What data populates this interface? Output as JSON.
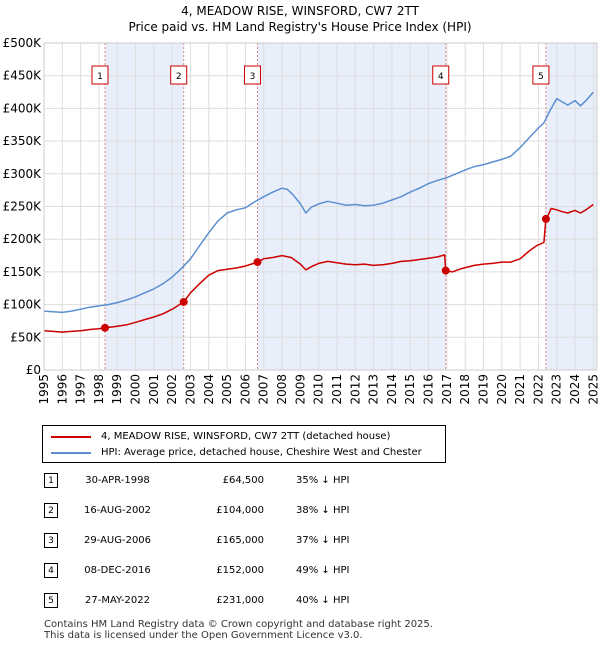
{
  "title": "4, MEADOW RISE, WINSFORD, CW7 2TT",
  "subtitle": "Price paid vs. HM Land Registry's House Price Index (HPI)",
  "colors": {
    "property": "#cc0000",
    "hpi": "#5b8fd0",
    "shade": "#e8eefa",
    "grid": "#dddddd",
    "vline": "#dd8888"
  },
  "chart_data": {
    "type": "line",
    "title": "4, MEADOW RISE, WINSFORD, CW7 2TT",
    "subtitle": "Price paid vs. HM Land Registry's House Price Index (HPI)",
    "xlim": [
      1995,
      2025.2
    ],
    "ylim": [
      0,
      500000
    ],
    "x_ticks": [
      1995,
      1996,
      1997,
      1998,
      1999,
      2000,
      2001,
      2002,
      2003,
      2004,
      2005,
      2006,
      2007,
      2008,
      2009,
      2010,
      2011,
      2012,
      2013,
      2014,
      2015,
      2016,
      2017,
      2018,
      2019,
      2020,
      2021,
      2022,
      2023,
      2024,
      2025
    ],
    "y_ticks": [
      {
        "value": 0,
        "label": "£0"
      },
      {
        "value": 50000,
        "label": "£50K"
      },
      {
        "value": 100000,
        "label": "£100K"
      },
      {
        "value": 150000,
        "label": "£150K"
      },
      {
        "value": 200000,
        "label": "£200K"
      },
      {
        "value": 250000,
        "label": "£250K"
      },
      {
        "value": 300000,
        "label": "£300K"
      },
      {
        "value": 350000,
        "label": "£350K"
      },
      {
        "value": 400000,
        "label": "£400K"
      },
      {
        "value": 450000,
        "label": "£450K"
      },
      {
        "value": 500000,
        "label": "£500K"
      }
    ],
    "series": [
      {
        "name": "4, MEADOW RISE, WINSFORD, CW7 2TT (detached house)",
        "color": "#cc0000",
        "x": [
          1995.0,
          1995.5,
          1996.0,
          1996.5,
          1997.0,
          1997.5,
          1998.0,
          1998.33,
          1998.8,
          1999.5,
          2000.0,
          2000.5,
          2001.0,
          2001.5,
          2002.0,
          2002.63,
          2003.0,
          2003.5,
          2004.0,
          2004.5,
          2005.0,
          2005.5,
          2006.0,
          2006.66,
          2007.0,
          2007.5,
          2008.0,
          2008.5,
          2009.0,
          2009.3,
          2009.6,
          2010.0,
          2010.5,
          2011.0,
          2011.5,
          2012.0,
          2012.5,
          2013.0,
          2013.5,
          2014.0,
          2014.5,
          2015.0,
          2015.5,
          2016.0,
          2016.5,
          2016.88,
          2016.93,
          2017.3,
          2017.8,
          2018.5,
          2019.0,
          2019.5,
          2020.0,
          2020.5,
          2021.0,
          2021.5,
          2021.9,
          2022.3,
          2022.41,
          2022.5,
          2022.7,
          2023.0,
          2023.3,
          2023.6,
          2024.0,
          2024.3,
          2024.6,
          2025.0
        ],
        "y": [
          60000,
          59000,
          58000,
          59000,
          60000,
          62000,
          63000,
          64500,
          66000,
          69000,
          73000,
          77000,
          81000,
          86000,
          93000,
          104000,
          118000,
          132000,
          145000,
          152000,
          154000,
          156000,
          159000,
          165000,
          170000,
          172000,
          175000,
          172000,
          162000,
          153000,
          158000,
          163000,
          166000,
          164000,
          162000,
          161000,
          162000,
          160000,
          161000,
          163000,
          166000,
          167000,
          169000,
          171000,
          173000,
          176000,
          152000,
          150000,
          155000,
          160000,
          162000,
          163000,
          165000,
          165000,
          170000,
          182000,
          190000,
          195000,
          231000,
          235000,
          247000,
          245000,
          242000,
          240000,
          244000,
          240000,
          245000,
          253000
        ]
      },
      {
        "name": "HPI: Average price, detached house, Cheshire West and Chester",
        "color": "#5b8fd0",
        "x": [
          1995.0,
          1995.5,
          1996.0,
          1996.5,
          1997.0,
          1997.5,
          1998.0,
          1998.5,
          1999.0,
          1999.5,
          2000.0,
          2000.5,
          2001.0,
          2001.5,
          2002.0,
          2002.5,
          2003.0,
          2003.5,
          2004.0,
          2004.5,
          2005.0,
          2005.5,
          2006.0,
          2006.5,
          2007.0,
          2007.5,
          2008.0,
          2008.3,
          2008.6,
          2009.0,
          2009.3,
          2009.6,
          2010.0,
          2010.5,
          2011.0,
          2011.5,
          2012.0,
          2012.5,
          2013.0,
          2013.5,
          2014.0,
          2014.5,
          2015.0,
          2015.5,
          2016.0,
          2016.5,
          2017.0,
          2017.5,
          2018.0,
          2018.5,
          2019.0,
          2019.5,
          2020.0,
          2020.5,
          2021.0,
          2021.5,
          2022.0,
          2022.3,
          2022.6,
          2023.0,
          2023.3,
          2023.6,
          2024.0,
          2024.3,
          2024.6,
          2025.0
        ],
        "y": [
          90000,
          89000,
          88000,
          90000,
          93000,
          96000,
          98000,
          100000,
          103000,
          107000,
          112000,
          118000,
          124000,
          132000,
          142000,
          155000,
          170000,
          190000,
          210000,
          228000,
          240000,
          245000,
          248000,
          257000,
          265000,
          272000,
          278000,
          276000,
          268000,
          254000,
          240000,
          249000,
          254000,
          258000,
          255000,
          252000,
          253000,
          251000,
          252000,
          255000,
          260000,
          265000,
          272000,
          278000,
          285000,
          290000,
          294000,
          300000,
          306000,
          311000,
          314000,
          318000,
          322000,
          327000,
          340000,
          355000,
          370000,
          378000,
          395000,
          415000,
          410000,
          405000,
          412000,
          404000,
          412000,
          425000
        ]
      }
    ],
    "sales": [
      {
        "num": "1",
        "date": "30-APR-1998",
        "x": 1998.33,
        "price": "£64,500",
        "value": 64500,
        "hpi": "35% ↓ HPI"
      },
      {
        "num": "2",
        "date": "16-AUG-2002",
        "x": 2002.63,
        "price": "£104,000",
        "value": 104000,
        "hpi": "38% ↓ HPI"
      },
      {
        "num": "3",
        "date": "29-AUG-2006",
        "x": 2006.66,
        "price": "£165,000",
        "value": 165000,
        "hpi": "37% ↓ HPI"
      },
      {
        "num": "4",
        "date": "08-DEC-2016",
        "x": 2016.94,
        "price": "£152,000",
        "value": 152000,
        "hpi": "49% ↓ HPI"
      },
      {
        "num": "5",
        "date": "27-MAY-2022",
        "x": 2022.41,
        "price": "£231,000",
        "value": 231000,
        "hpi": "40% ↓ HPI"
      }
    ]
  },
  "legend": {
    "property_label": "4, MEADOW RISE, WINSFORD, CW7 2TT (detached house)",
    "hpi_label": "HPI: Average price, detached house, Cheshire West and Chester"
  },
  "footer": {
    "line1": "Contains HM Land Registry data © Crown copyright and database right 2025.",
    "line2": "This data is licensed under the Open Government Licence v3.0."
  }
}
